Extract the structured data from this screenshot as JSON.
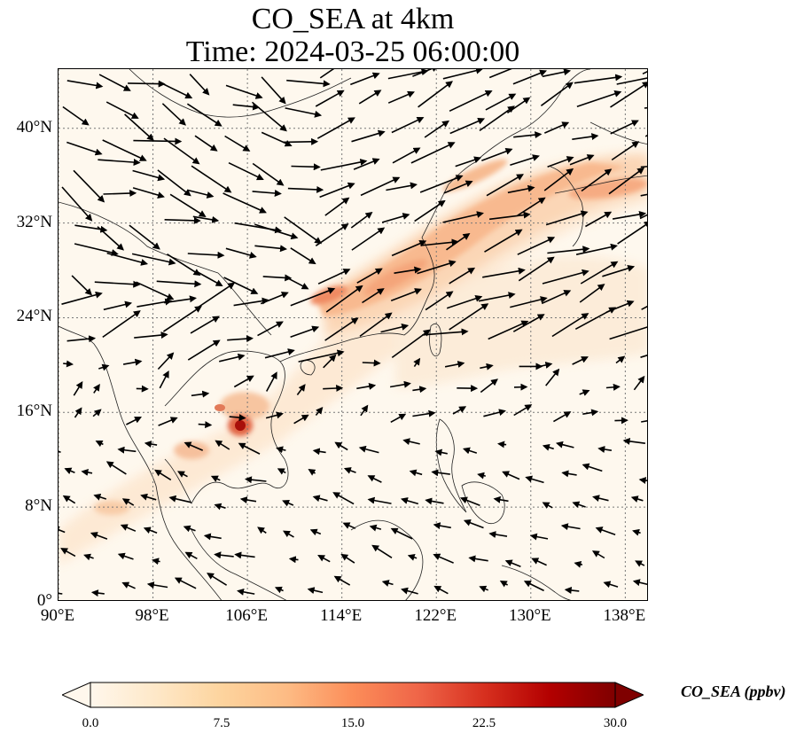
{
  "title": {
    "line1": "CO_SEA at 4km",
    "line2": "Time: 2024-03-25 06:00:00"
  },
  "map": {
    "extent": {
      "lon_min": 90,
      "lon_max": 140,
      "lat_min": 0,
      "lat_max": 45
    },
    "gridlines": "dotted gray",
    "lon_ticks": [
      {
        "value": 90,
        "label": "90°E"
      },
      {
        "value": 98,
        "label": "98°E"
      },
      {
        "value": 106,
        "label": "106°E"
      },
      {
        "value": 114,
        "label": "114°E"
      },
      {
        "value": 122,
        "label": "122°E"
      },
      {
        "value": 130,
        "label": "130°E"
      },
      {
        "value": 138,
        "label": "138°E"
      }
    ],
    "lat_ticks": [
      {
        "value": 0,
        "label": "0°"
      },
      {
        "value": 8,
        "label": "8°N"
      },
      {
        "value": 16,
        "label": "16°N"
      },
      {
        "value": 24,
        "label": "24°N"
      },
      {
        "value": 32,
        "label": "32°N"
      },
      {
        "value": 40,
        "label": "40°N"
      }
    ],
    "plume_colors": [
      "#fde0c5",
      "#fcbb8a",
      "#f9925e",
      "#e45a3a",
      "#b71c0f"
    ],
    "wind_vectors": "black arrows, westerly flow north of ~20°N, easterly/north-easterly trades south"
  },
  "colorbar": {
    "label": "CO_SEA (ppbv)",
    "min": 0.0,
    "max": 30.0,
    "extend": "both",
    "colormap": "OrRd",
    "colors": [
      "#fff7ec",
      "#fee8c8",
      "#fdd49e",
      "#fdbb84",
      "#fc8d59",
      "#ef6548",
      "#d7301f",
      "#b30000",
      "#7f0000"
    ],
    "ticks": [
      {
        "value": 0.0,
        "label": "0.0"
      },
      {
        "value": 7.5,
        "label": "7.5"
      },
      {
        "value": 15.0,
        "label": "15.0"
      },
      {
        "value": 22.5,
        "label": "22.5"
      },
      {
        "value": 30.0,
        "label": "30.0"
      }
    ]
  }
}
